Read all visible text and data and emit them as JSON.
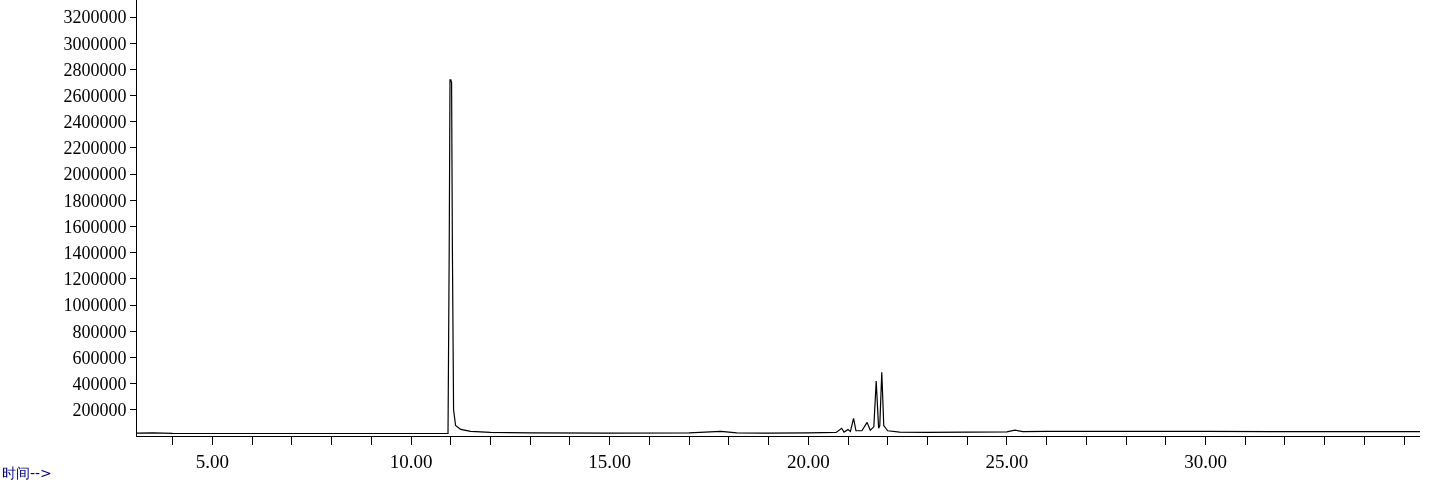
{
  "chart_data": {
    "type": "line",
    "xlabel": "时间-->",
    "x": [
      3.1,
      3.5,
      4.0,
      5.0,
      7.0,
      9.0,
      10.5,
      10.93,
      10.96,
      10.98,
      11.0,
      11.02,
      11.04,
      11.07,
      11.12,
      11.25,
      11.5,
      12.0,
      13.0,
      15.0,
      17.0,
      17.8,
      18.2,
      19.0,
      20.0,
      20.7,
      20.84,
      20.9,
      21.0,
      21.06,
      21.14,
      21.2,
      21.35,
      21.48,
      21.56,
      21.65,
      21.71,
      21.77,
      21.8,
      21.85,
      21.9,
      22.0,
      22.3,
      23.0,
      24.0,
      25.0,
      25.2,
      25.4,
      26.0,
      28.0,
      30.0,
      32.0,
      34.0,
      35.4
    ],
    "series": [
      {
        "color": "#000000",
        "values": [
          22000,
          24000,
          20000,
          19000,
          19000,
          19000,
          19000,
          20000,
          1430000,
          2720000,
          2720000,
          2700000,
          1430000,
          200000,
          80000,
          50000,
          35000,
          28000,
          24000,
          22000,
          24000,
          35000,
          24000,
          22000,
          24000,
          27000,
          59000,
          30000,
          49000,
          35000,
          134000,
          40000,
          40000,
          104000,
          45000,
          70000,
          419000,
          60000,
          80000,
          487000,
          80000,
          40000,
          30000,
          28000,
          30000,
          32000,
          45000,
          34000,
          36000,
          36000,
          35000,
          34000,
          34000,
          34000
        ]
      }
    ],
    "xlim": [
      3.1,
      35.4
    ],
    "ylim": [
      0,
      3330000
    ],
    "xticks": [
      {
        "value": 4,
        "label": null
      },
      {
        "value": 5,
        "label": "5.00"
      },
      {
        "value": 6,
        "label": null
      },
      {
        "value": 7,
        "label": null
      },
      {
        "value": 8,
        "label": null
      },
      {
        "value": 9,
        "label": null
      },
      {
        "value": 10,
        "label": "10.00"
      },
      {
        "value": 11,
        "label": null
      },
      {
        "value": 12,
        "label": null
      },
      {
        "value": 13,
        "label": null
      },
      {
        "value": 14,
        "label": null
      },
      {
        "value": 15,
        "label": "15.00"
      },
      {
        "value": 16,
        "label": null
      },
      {
        "value": 17,
        "label": null
      },
      {
        "value": 18,
        "label": null
      },
      {
        "value": 19,
        "label": null
      },
      {
        "value": 20,
        "label": "20.00"
      },
      {
        "value": 21,
        "label": null
      },
      {
        "value": 22,
        "label": null
      },
      {
        "value": 23,
        "label": null
      },
      {
        "value": 24,
        "label": null
      },
      {
        "value": 25,
        "label": "25.00"
      },
      {
        "value": 26,
        "label": null
      },
      {
        "value": 27,
        "label": null
      },
      {
        "value": 28,
        "label": null
      },
      {
        "value": 29,
        "label": null
      },
      {
        "value": 30,
        "label": "30.00"
      },
      {
        "value": 31,
        "label": null
      },
      {
        "value": 32,
        "label": null
      },
      {
        "value": 33,
        "label": null
      },
      {
        "value": 34,
        "label": null
      },
      {
        "value": 35,
        "label": null
      }
    ],
    "yticks": [
      200000,
      400000,
      600000,
      800000,
      1000000,
      1200000,
      1400000,
      1600000,
      1800000,
      2000000,
      2200000,
      2400000,
      2600000,
      2800000,
      3000000,
      3200000
    ],
    "legend": false,
    "marker": "none",
    "line_style": "solid"
  }
}
